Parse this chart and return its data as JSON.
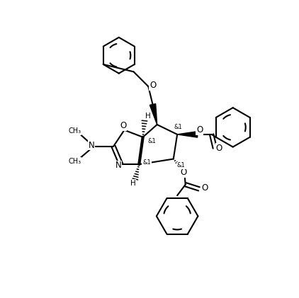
{
  "bg": "#ffffff",
  "lw": 1.5,
  "figsize": [
    4.22,
    4.21
  ],
  "dpi": 100,
  "xlim": [
    0,
    422
  ],
  "ylim": [
    0,
    421
  ]
}
